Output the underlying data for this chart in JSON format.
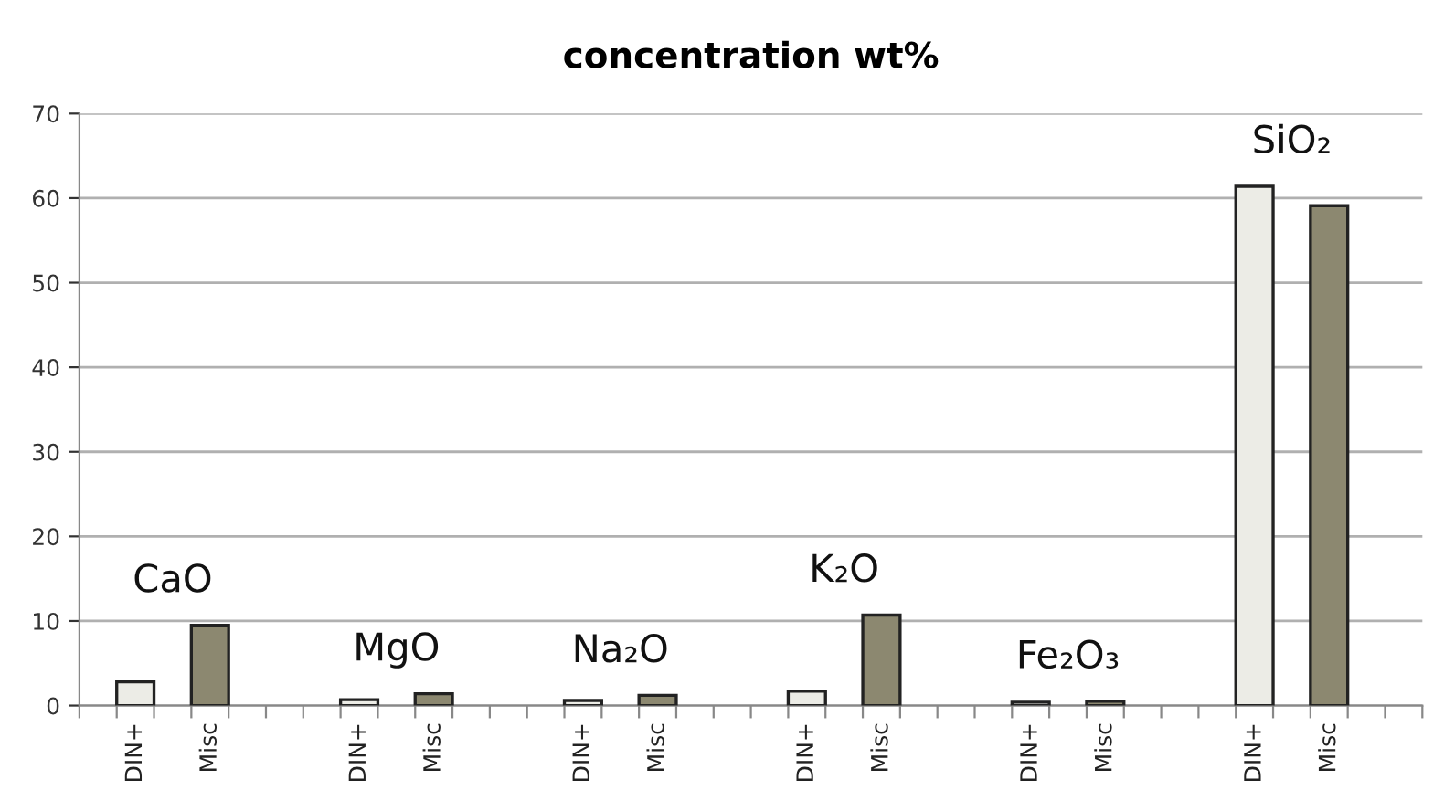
{
  "chart_data": {
    "type": "bar",
    "title": "concentration wt%",
    "categories": [
      null,
      "DIN+",
      null,
      "Misc",
      null,
      null,
      null,
      "DIN+",
      null,
      "Misc",
      null,
      null,
      null,
      "DIN+",
      null,
      "Misc",
      null,
      null,
      null,
      "DIN+",
      null,
      "Misc",
      null,
      null,
      null,
      "DIN+",
      null,
      "Misc",
      null,
      null,
      null,
      "DIN+",
      null,
      "Misc",
      null,
      null
    ],
    "values": [
      null,
      2.8,
      null,
      9.5,
      null,
      null,
      null,
      0.7,
      null,
      1.4,
      null,
      null,
      null,
      0.6,
      null,
      1.2,
      null,
      null,
      null,
      1.7,
      null,
      10.7,
      null,
      null,
      null,
      0.4,
      null,
      0.5,
      null,
      null,
      null,
      61.4,
      null,
      59.1,
      null,
      null
    ],
    "colors": [
      null,
      "#ecece6",
      null,
      "#8c8870",
      null,
      null,
      null,
      "#ecece6",
      null,
      "#8c8870",
      null,
      null,
      null,
      "#ecece6",
      null,
      "#8c8870",
      null,
      null,
      null,
      "#ecece6",
      null,
      "#8c8870",
      null,
      null,
      null,
      "#ecece6",
      null,
      "#8c8870",
      null,
      null,
      null,
      "#ecece6",
      null,
      "#8c8870",
      null,
      null
    ],
    "annotations": [
      "CaO",
      "MgO",
      "Na₂O",
      "K₂O",
      "Fe₂O₃",
      "SiO₂"
    ],
    "ylim": [
      0,
      70
    ],
    "yticks": [
      0,
      10,
      20,
      30,
      40,
      50,
      60,
      70
    ],
    "grid": "y",
    "legend": false
  }
}
